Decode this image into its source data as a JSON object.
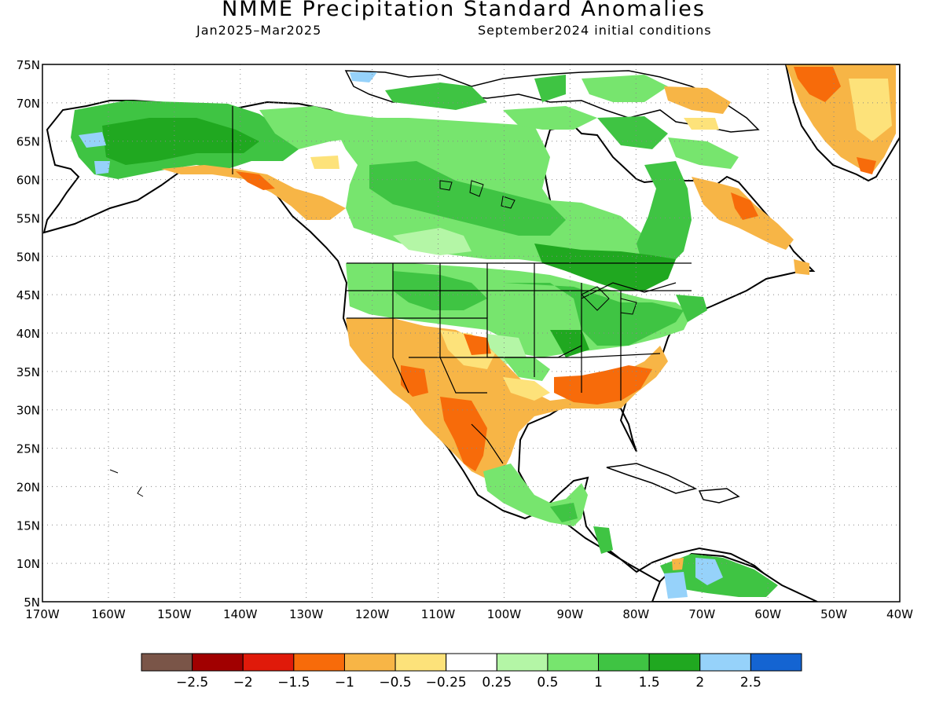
{
  "title": "NMME Precipitation Standard Anomalies",
  "subtitle_left": "Jan2025–Mar2025",
  "subtitle_right": "September2024 initial conditions",
  "map": {
    "lon_range": [
      -170,
      -40
    ],
    "lat_range": [
      5,
      75
    ],
    "lat_labels": [
      "75N",
      "70N",
      "65N",
      "60N",
      "55N",
      "50N",
      "45N",
      "40N",
      "35N",
      "30N",
      "25N",
      "20N",
      "15N",
      "10N",
      "5N"
    ],
    "lon_labels": [
      "170W",
      "160W",
      "150W",
      "140W",
      "130W",
      "120W",
      "110W",
      "100W",
      "90W",
      "80W",
      "70W",
      "60W",
      "50W",
      "40W"
    ],
    "ocean_color": "#ffffff",
    "gridlines": true
  },
  "colorbar": {
    "colors": [
      "#7a5548",
      "#a10000",
      "#e01a0a",
      "#f76b0a",
      "#f7b546",
      "#fde27a",
      "#ffffff",
      "#b4f6a6",
      "#77e56e",
      "#3fc443",
      "#20a820",
      "#96d2fa",
      "#1464d2"
    ],
    "labels": [
      "−2.5",
      "−2",
      "−1.5",
      "−1",
      "−0.5",
      "−0.25",
      "0.25",
      "0.5",
      "1",
      "1.5",
      "2",
      "2.5"
    ]
  }
}
